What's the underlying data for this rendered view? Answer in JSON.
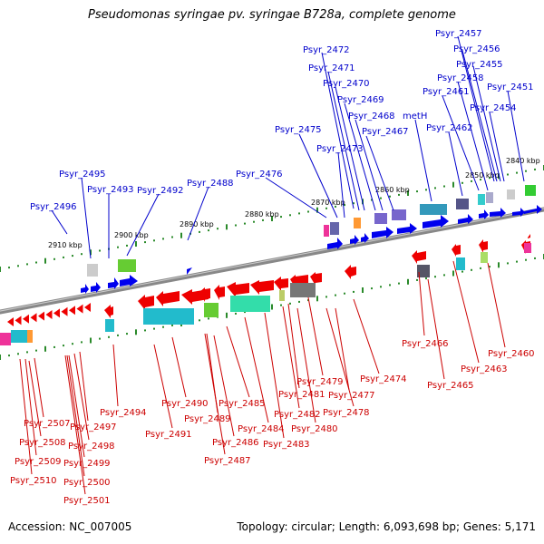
{
  "title": "Pseudomonas syringae pv. syringae B728a, complete genome",
  "accession": "Accession: NC_007005",
  "topology": "Topology: circular; Length: 6,093,698 bp; Genes: 5,171",
  "colors": {
    "forward_gene": "#0000ee",
    "reverse_gene": "#ee0000",
    "forward_label": "#0000cc",
    "reverse_label": "#cc0000",
    "backbone": "#888888",
    "tick": "#2a8a2a"
  },
  "kbp_markers": [
    "2840 kbp",
    "2850 kbp",
    "2860 kbp",
    "2870 kbp",
    "2880 kbp",
    "2890 kbp",
    "2900 kbp",
    "2910 kbp"
  ],
  "top_labels": [
    "Psyr_2457",
    "Psyr_2456",
    "Psyr_2455",
    "Psyr_2472",
    "Psyr_2458",
    "Psyr_2451",
    "Psyr_2471",
    "Psyr_2461",
    "Psyr_2470",
    "Psyr_2469",
    "Psyr_2454",
    "Psyr_2468",
    "metH",
    "Psyr_2475",
    "Psyr_2462",
    "Psyr_2467",
    "Psyr_2473",
    "Psyr_2476",
    "Psyr_2495",
    "Psyr_2493",
    "Psyr_2492",
    "Psyr_2488",
    "Psyr_2496"
  ],
  "bottom_labels": [
    "Psyr_2466",
    "Psyr_2460",
    "Psyr_2463",
    "Psyr_2474",
    "Psyr_2465",
    "Psyr_2479",
    "Psyr_2477",
    "Psyr_2481",
    "Psyr_2490",
    "Psyr_2485",
    "Psyr_2494",
    "Psyr_2489",
    "Psyr_2482",
    "Psyr_2478",
    "Psyr_2507",
    "Psyr_2497",
    "Psyr_2484",
    "Psyr_2480",
    "Psyr_2491",
    "Psyr_2508",
    "Psyr_2486",
    "Psyr_2483",
    "Psyr_2498",
    "Psyr_2509",
    "Psyr_2499",
    "Psyr_2487",
    "Psyr_2510",
    "Psyr_2500",
    "Psyr_2501"
  ]
}
